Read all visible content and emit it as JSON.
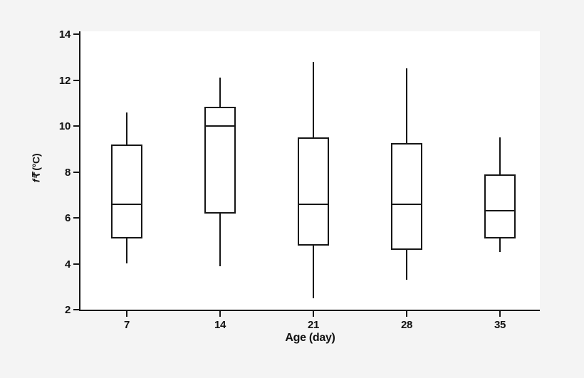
{
  "page": {
    "background": "#f4f4f4",
    "plot_background": "#ffffff",
    "line_color": "#161616",
    "text_color": "#111111"
  },
  "chart_data": {
    "type": "box",
    "title": "",
    "xlabel": "Age (day)",
    "ylabel": "f₹ (°C)",
    "ylabel_parts": {
      "variable": "f₹",
      "unit": "(°C)"
    },
    "categories": [
      "7",
      "14",
      "21",
      "28",
      "35"
    ],
    "y_ticks": [
      2,
      4,
      6,
      8,
      10,
      12,
      14
    ],
    "ylim": [
      2,
      14
    ],
    "grid": false,
    "legend": false,
    "whisker_caps": false,
    "series": [
      {
        "category": "7",
        "min": 4.0,
        "q1": 5.1,
        "median": 6.6,
        "q3": 9.2,
        "max": 10.6
      },
      {
        "category": "14",
        "min": 3.9,
        "q1": 6.2,
        "median": 10.0,
        "q3": 10.85,
        "max": 12.1
      },
      {
        "category": "21",
        "min": 2.5,
        "q1": 4.8,
        "median": 6.6,
        "q3": 9.5,
        "max": 12.8
      },
      {
        "category": "28",
        "min": 3.3,
        "q1": 4.6,
        "median": 6.6,
        "q3": 9.25,
        "max": 12.5
      },
      {
        "category": "35",
        "min": 4.5,
        "q1": 5.1,
        "median": 6.3,
        "q3": 7.9,
        "max": 9.5
      }
    ],
    "colors": {
      "box_fill": "#ffffff",
      "box_line": "#161616"
    }
  }
}
